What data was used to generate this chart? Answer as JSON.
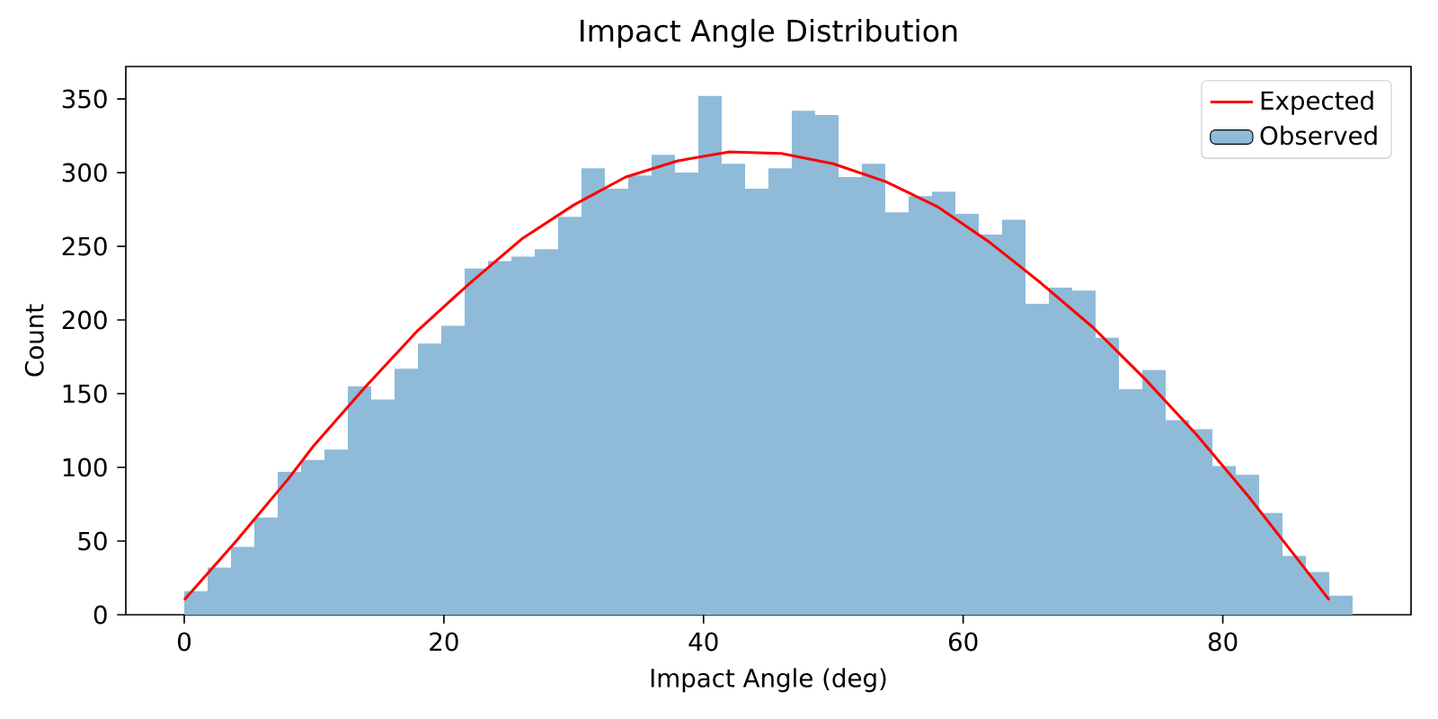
{
  "chart_data": {
    "type": "histogram",
    "title": "Impact Angle Distribution",
    "xlabel": "Impact Angle (deg)",
    "ylabel": "Count",
    "bins": [
      0,
      1.8,
      3.6,
      5.4,
      7.2,
      9,
      10.8,
      12.6,
      14.4,
      16.2,
      18,
      19.8,
      21.6,
      23.4,
      25.2,
      27,
      28.8,
      30.6,
      32.4,
      34.2,
      36,
      37.8,
      39.6,
      41.4,
      43.2,
      45,
      46.8,
      48.6,
      50.4,
      52.2,
      54,
      55.8,
      57.6,
      59.4,
      61.2,
      63,
      64.8,
      66.6,
      68.4,
      70.2,
      72,
      73.8,
      75.6,
      77.4,
      79.2,
      81,
      82.8,
      84.6,
      86.4,
      88.2,
      90
    ],
    "series": [
      {
        "name": "Observed",
        "color": "#8fbbd9",
        "values": [
          16,
          32,
          46,
          66,
          97,
          105,
          112,
          155,
          146,
          167,
          184,
          196,
          235,
          240,
          243,
          248,
          270,
          303,
          289,
          298,
          312,
          300,
          352,
          306,
          289,
          303,
          342,
          339,
          297,
          306,
          273,
          284,
          287,
          272,
          258,
          268,
          211,
          222,
          220,
          188,
          153,
          166,
          132,
          126,
          101,
          95,
          69,
          40,
          29,
          13
        ]
      },
      {
        "name": "Expected",
        "type": "line",
        "color": "#ff0000",
        "x": [
          0,
          4,
          8,
          10,
          14,
          18,
          22,
          26,
          30,
          34,
          38,
          42,
          46,
          50,
          54,
          58,
          62,
          66,
          70,
          74,
          78,
          82,
          86,
          88.2
        ],
        "values": [
          10,
          50,
          92,
          115,
          155,
          193,
          225,
          255,
          278,
          297,
          308,
          314,
          313,
          306,
          294,
          277,
          253,
          225,
          195,
          160,
          122,
          80,
          35,
          10
        ]
      }
    ],
    "xlim": [
      -4.5,
      94.5
    ],
    "ylim": [
      0,
      372
    ],
    "xticks": [
      0,
      20,
      40,
      60,
      80
    ],
    "yticks": [
      0,
      50,
      100,
      150,
      200,
      250,
      300,
      350
    ],
    "legend": "top right"
  }
}
